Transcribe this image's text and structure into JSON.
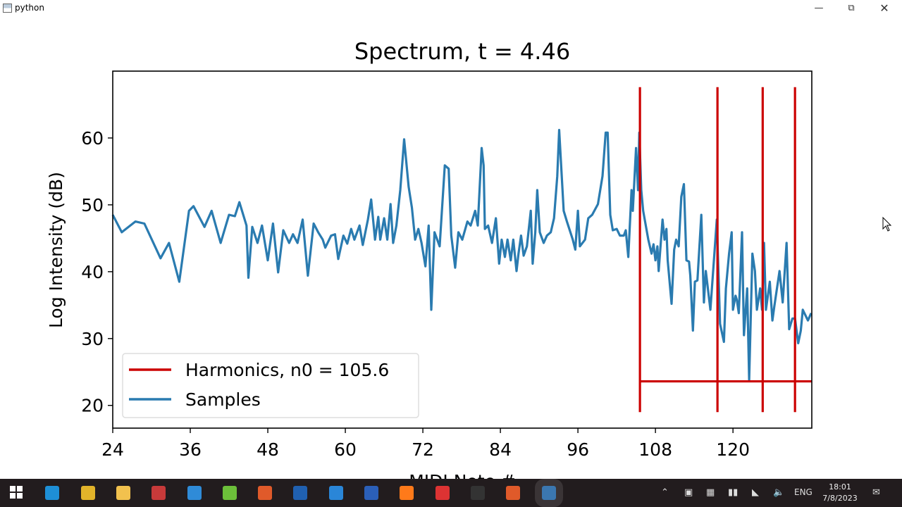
{
  "window": {
    "title": "python",
    "controls": [
      "minimize",
      "restore",
      "close"
    ]
  },
  "chart_data": {
    "type": "line",
    "title": "Spectrum, t = 4.46",
    "xlabel": "MIDI Note #",
    "ylabel": "Log Intensity (dB)",
    "xlim": [
      24,
      132.2
    ],
    "ylim": [
      16.6,
      70
    ],
    "xticks": [
      24,
      36,
      48,
      60,
      72,
      84,
      96,
      108,
      120
    ],
    "yticks": [
      20,
      30,
      40,
      50,
      60
    ],
    "grid": false,
    "legend_position": "lower-left",
    "series": [
      {
        "name": "Harmonics, n0 = 105.6",
        "color": "#cc0000",
        "kind": "harmonics",
        "x": [
          105.6,
          117.6,
          124.6,
          129.6
        ],
        "ymin": 19,
        "ymax": 67.6,
        "baseline": 23.6
      },
      {
        "name": "Samples",
        "color": "#2a7bb0",
        "kind": "line",
        "points": [
          [
            24.0,
            48.5
          ],
          [
            25.4,
            45.9
          ],
          [
            27.5,
            47.5
          ],
          [
            28.9,
            47.2
          ],
          [
            31.4,
            42.0
          ],
          [
            32.7,
            44.3
          ],
          [
            34.3,
            38.5
          ],
          [
            35.8,
            49.1
          ],
          [
            36.5,
            49.8
          ],
          [
            38.2,
            46.7
          ],
          [
            39.3,
            49.1
          ],
          [
            40.7,
            44.3
          ],
          [
            42.0,
            48.5
          ],
          [
            42.9,
            48.3
          ],
          [
            43.6,
            50.4
          ],
          [
            44.7,
            46.9
          ],
          [
            45.0,
            39.1
          ],
          [
            45.6,
            46.7
          ],
          [
            46.4,
            44.3
          ],
          [
            47.1,
            46.9
          ],
          [
            48.0,
            41.7
          ],
          [
            48.8,
            47.2
          ],
          [
            49.6,
            39.9
          ],
          [
            50.4,
            46.2
          ],
          [
            51.3,
            44.3
          ],
          [
            51.9,
            45.6
          ],
          [
            52.6,
            44.3
          ],
          [
            53.4,
            47.8
          ],
          [
            54.2,
            39.4
          ],
          [
            55.1,
            47.2
          ],
          [
            55.8,
            45.9
          ],
          [
            56.5,
            44.8
          ],
          [
            56.9,
            43.6
          ],
          [
            57.8,
            45.4
          ],
          [
            58.4,
            45.6
          ],
          [
            58.9,
            41.9
          ],
          [
            59.7,
            45.4
          ],
          [
            60.3,
            44.2
          ],
          [
            60.9,
            46.4
          ],
          [
            61.4,
            44.8
          ],
          [
            62.2,
            46.9
          ],
          [
            62.7,
            44.0
          ],
          [
            63.5,
            47.8
          ],
          [
            64.0,
            50.8
          ],
          [
            64.6,
            44.8
          ],
          [
            65.1,
            48.2
          ],
          [
            65.4,
            44.8
          ],
          [
            66.0,
            48.0
          ],
          [
            66.5,
            44.8
          ],
          [
            67.0,
            50.1
          ],
          [
            67.4,
            44.3
          ],
          [
            67.9,
            46.9
          ],
          [
            68.5,
            52.2
          ],
          [
            69.1,
            59.8
          ],
          [
            69.8,
            52.7
          ],
          [
            70.3,
            49.6
          ],
          [
            70.8,
            44.8
          ],
          [
            71.3,
            46.4
          ],
          [
            71.8,
            44.3
          ],
          [
            72.4,
            40.8
          ],
          [
            72.9,
            46.9
          ],
          [
            73.3,
            34.3
          ],
          [
            73.8,
            45.9
          ],
          [
            74.6,
            43.8
          ],
          [
            75.4,
            55.9
          ],
          [
            76.0,
            55.4
          ],
          [
            76.4,
            45.4
          ],
          [
            77.0,
            40.6
          ],
          [
            77.5,
            45.9
          ],
          [
            78.1,
            44.8
          ],
          [
            78.9,
            47.5
          ],
          [
            79.4,
            46.9
          ],
          [
            80.1,
            49.1
          ],
          [
            80.5,
            46.9
          ],
          [
            81.1,
            58.5
          ],
          [
            81.4,
            55.9
          ],
          [
            81.6,
            46.4
          ],
          [
            82.1,
            46.9
          ],
          [
            82.7,
            44.3
          ],
          [
            83.3,
            48.0
          ],
          [
            83.8,
            41.2
          ],
          [
            84.2,
            44.8
          ],
          [
            84.7,
            42.2
          ],
          [
            85.1,
            44.8
          ],
          [
            85.6,
            41.7
          ],
          [
            86.0,
            44.8
          ],
          [
            86.5,
            40.1
          ],
          [
            86.8,
            42.7
          ],
          [
            87.2,
            45.4
          ],
          [
            87.6,
            42.4
          ],
          [
            88.1,
            43.8
          ],
          [
            88.7,
            49.1
          ],
          [
            89.0,
            41.2
          ],
          [
            89.4,
            45.9
          ],
          [
            89.7,
            52.2
          ],
          [
            90.1,
            45.9
          ],
          [
            90.7,
            44.3
          ],
          [
            91.2,
            45.4
          ],
          [
            91.8,
            45.9
          ],
          [
            92.3,
            48.0
          ],
          [
            92.8,
            54.3
          ],
          [
            93.1,
            61.2
          ],
          [
            93.8,
            49.1
          ],
          [
            94.3,
            47.5
          ],
          [
            95.2,
            44.8
          ],
          [
            95.6,
            43.3
          ],
          [
            96.0,
            49.1
          ],
          [
            96.3,
            43.8
          ],
          [
            97.1,
            44.8
          ],
          [
            97.6,
            48.0
          ],
          [
            98.2,
            48.5
          ],
          [
            99.1,
            50.1
          ],
          [
            99.8,
            54.3
          ],
          [
            100.3,
            60.8
          ],
          [
            100.6,
            60.8
          ],
          [
            101.0,
            48.5
          ],
          [
            101.4,
            46.2
          ],
          [
            102.0,
            46.4
          ],
          [
            102.5,
            45.4
          ],
          [
            103.1,
            45.4
          ],
          [
            103.4,
            46.2
          ],
          [
            103.8,
            42.2
          ],
          [
            104.3,
            52.2
          ],
          [
            104.5,
            49.1
          ],
          [
            105.0,
            58.5
          ],
          [
            105.3,
            52.2
          ],
          [
            105.5,
            60.8
          ],
          [
            105.8,
            52.2
          ],
          [
            106.1,
            49.1
          ],
          [
            106.9,
            44.8
          ],
          [
            107.4,
            42.7
          ],
          [
            107.7,
            44.1
          ],
          [
            108.0,
            41.7
          ],
          [
            108.3,
            43.8
          ],
          [
            108.5,
            40.1
          ],
          [
            109.1,
            47.8
          ],
          [
            109.4,
            44.8
          ],
          [
            109.7,
            46.4
          ],
          [
            109.9,
            41.7
          ],
          [
            110.5,
            35.2
          ],
          [
            110.9,
            43.3
          ],
          [
            111.2,
            44.8
          ],
          [
            111.6,
            43.8
          ],
          [
            112.0,
            51.2
          ],
          [
            112.4,
            53.1
          ],
          [
            112.8,
            41.7
          ],
          [
            113.2,
            41.5
          ],
          [
            113.4,
            39.4
          ],
          [
            113.8,
            31.2
          ],
          [
            114.1,
            38.5
          ],
          [
            114.5,
            38.7
          ],
          [
            115.1,
            48.5
          ],
          [
            115.5,
            35.4
          ],
          [
            115.8,
            40.1
          ],
          [
            116.5,
            34.3
          ],
          [
            117.5,
            47.8
          ],
          [
            118.0,
            32.2
          ],
          [
            118.6,
            29.5
          ],
          [
            118.9,
            37.5
          ],
          [
            119.4,
            42.7
          ],
          [
            119.8,
            45.9
          ],
          [
            120.0,
            34.3
          ],
          [
            120.4,
            36.4
          ],
          [
            120.6,
            35.8
          ],
          [
            120.9,
            33.8
          ],
          [
            121.4,
            45.9
          ],
          [
            121.7,
            30.5
          ],
          [
            122.2,
            37.5
          ],
          [
            122.5,
            23.8
          ],
          [
            123.0,
            42.7
          ],
          [
            123.4,
            40.1
          ],
          [
            123.7,
            34.3
          ],
          [
            124.2,
            37.5
          ],
          [
            124.5,
            34.3
          ],
          [
            124.8,
            44.3
          ],
          [
            125.1,
            34.3
          ],
          [
            125.7,
            38.5
          ],
          [
            126.1,
            32.7
          ],
          [
            126.4,
            34.8
          ],
          [
            127.2,
            40.1
          ],
          [
            127.7,
            35.4
          ],
          [
            128.3,
            44.3
          ],
          [
            128.7,
            31.4
          ],
          [
            129.2,
            33.0
          ],
          [
            129.6,
            33.0
          ],
          [
            130.1,
            29.3
          ],
          [
            130.5,
            31.2
          ],
          [
            130.8,
            34.3
          ],
          [
            131.6,
            32.7
          ],
          [
            132.1,
            33.8
          ]
        ]
      }
    ]
  },
  "taskbar": {
    "apps": [
      "windows-start",
      "edge",
      "chrome",
      "file-explorer",
      "filezilla",
      "android-studio",
      "notepad-plus",
      "git",
      "photos",
      "file-app",
      "word",
      "firefox",
      "db-app",
      "terminal",
      "git-2",
      "python"
    ],
    "tray": {
      "language": "ENG",
      "time": "18:01",
      "date": "7/8/2023"
    }
  }
}
